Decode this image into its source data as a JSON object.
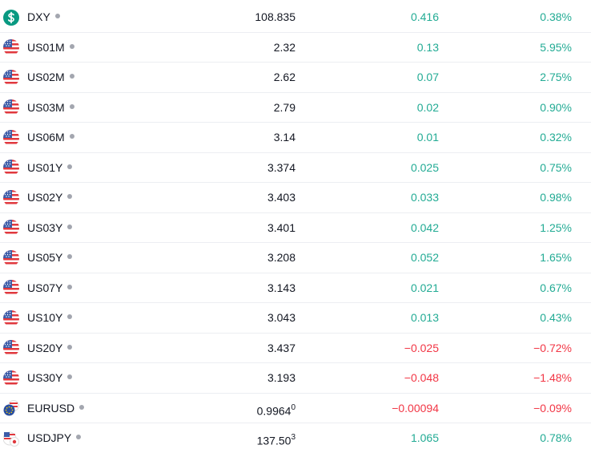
{
  "watchlist": {
    "rows": [
      {
        "symbol": "DXY",
        "last": "108.835",
        "change": "0.416",
        "change_pct": "0.38%",
        "color": "#22ab94"
      },
      {
        "symbol": "US01M",
        "last": "2.32",
        "change": "0.13",
        "change_pct": "5.95%",
        "color": "#22ab94"
      },
      {
        "symbol": "US02M",
        "last": "2.62",
        "change": "0.07",
        "change_pct": "2.75%",
        "color": "#22ab94"
      },
      {
        "symbol": "US03M",
        "last": "2.79",
        "change": "0.02",
        "change_pct": "0.90%",
        "color": "#22ab94"
      },
      {
        "symbol": "US06M",
        "last": "3.14",
        "change": "0.01",
        "change_pct": "0.32%",
        "color": "#22ab94"
      },
      {
        "symbol": "US01Y",
        "last": "3.374",
        "change": "0.025",
        "change_pct": "0.75%",
        "color": "#22ab94"
      },
      {
        "symbol": "US02Y",
        "last": "3.403",
        "change": "0.033",
        "change_pct": "0.98%",
        "color": "#22ab94"
      },
      {
        "symbol": "US03Y",
        "last": "3.401",
        "change": "0.042",
        "change_pct": "1.25%",
        "color": "#22ab94"
      },
      {
        "symbol": "US05Y",
        "last": "3.208",
        "change": "0.052",
        "change_pct": "1.65%",
        "color": "#22ab94"
      },
      {
        "symbol": "US07Y",
        "last": "3.143",
        "change": "0.021",
        "change_pct": "0.67%",
        "color": "#22ab94"
      },
      {
        "symbol": "US10Y",
        "last": "3.043",
        "change": "0.013",
        "change_pct": "0.43%",
        "color": "#22ab94"
      },
      {
        "symbol": "US20Y",
        "last": "3.437",
        "change": "−0.025",
        "change_pct": "−0.72%",
        "color": "#f23645"
      },
      {
        "symbol": "US30Y",
        "last": "3.193",
        "change": "−0.048",
        "change_pct": "−1.48%",
        "color": "#f23645"
      },
      {
        "symbol": "EURUSD",
        "last": "0.9964",
        "last_sup": "0",
        "change": "−0.00094",
        "change_pct": "−0.09%",
        "color": "#f23645"
      },
      {
        "symbol": "USDJPY",
        "last": "137.50",
        "last_sup": "3",
        "change": "1.065",
        "change_pct": "0.78%",
        "color": "#22ab94"
      }
    ]
  }
}
